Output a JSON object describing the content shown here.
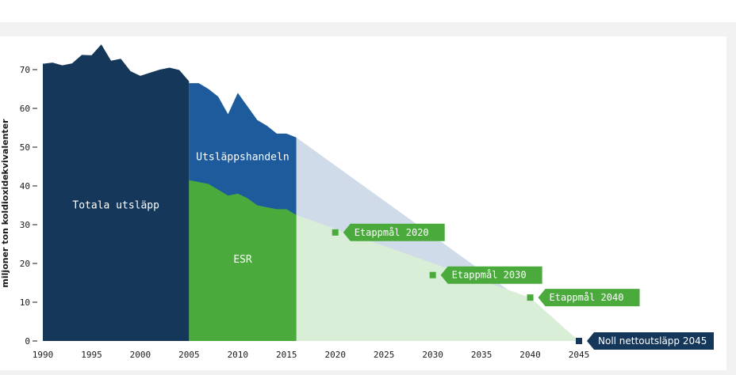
{
  "chart_data": {
    "type": "area",
    "ylabel": "miljoner ton koldioxidekvivalenter",
    "xlim": [
      1990,
      2045
    ],
    "ylim": [
      0,
      75
    ],
    "x_ticks": [
      1990,
      1995,
      2000,
      2005,
      2010,
      2015,
      2020,
      2025,
      2030,
      2035,
      2040,
      2045
    ],
    "y_ticks": [
      0,
      10,
      20,
      30,
      40,
      50,
      60,
      70
    ],
    "colors": {
      "total": "#15375a",
      "ets": "#1e5b9c",
      "esr": "#4aaa3c",
      "ets_path": "#cfdbe9",
      "esr_path": "#d9eed6",
      "milestone": "#4aaa3c",
      "final": "#15375a"
    },
    "series": [
      {
        "name": "Totala utsläpp",
        "x": [
          1990,
          1991,
          1992,
          1993,
          1994,
          1995,
          1996,
          1997,
          1998,
          1999,
          2000,
          2001,
          2002,
          2003,
          2004,
          2005
        ],
        "values": [
          71.5,
          71.8,
          71.1,
          71.6,
          73.8,
          73.7,
          76.5,
          72.3,
          72.8,
          69.6,
          68.4,
          69.2,
          70.0,
          70.5,
          69.9,
          67.0
        ]
      },
      {
        "name": "Utsläppshandeln",
        "x": [
          2005,
          2006,
          2007,
          2008,
          2009,
          2010,
          2011,
          2012,
          2013,
          2014,
          2015,
          2016
        ],
        "values": [
          66.5,
          66.5,
          65.0,
          63.0,
          58.5,
          64.0,
          60.5,
          57.0,
          55.5,
          53.5,
          53.5,
          52.5
        ]
      },
      {
        "name": "ESR",
        "x": [
          2005,
          2006,
          2007,
          2008,
          2009,
          2010,
          2011,
          2012,
          2013,
          2014,
          2015,
          2016
        ],
        "values": [
          41.5,
          41.0,
          40.5,
          39.0,
          37.5,
          38.0,
          36.8,
          35.0,
          34.5,
          34.0,
          34.0,
          32.5
        ]
      }
    ],
    "projection": {
      "ets_path": {
        "x": [
          2016,
          2045
        ],
        "values": [
          52.5,
          0
        ]
      },
      "esr_path": {
        "x": [
          2016,
          2040,
          2045
        ],
        "values": [
          32.5,
          11.2,
          0
        ]
      }
    },
    "milestones": [
      {
        "label": "Etappmål 2020",
        "x": 2020,
        "value": 28
      },
      {
        "label": "Etappmål 2030",
        "x": 2030,
        "value": 17
      },
      {
        "label": "Etappmål 2040",
        "x": 2040,
        "value": 11.2
      },
      {
        "label": "Noll nettoutsläpp 2045",
        "x": 2045,
        "value": 0
      }
    ],
    "area_labels": [
      "Totala utsläpp",
      "Utsläppshandeln",
      "ESR"
    ]
  }
}
